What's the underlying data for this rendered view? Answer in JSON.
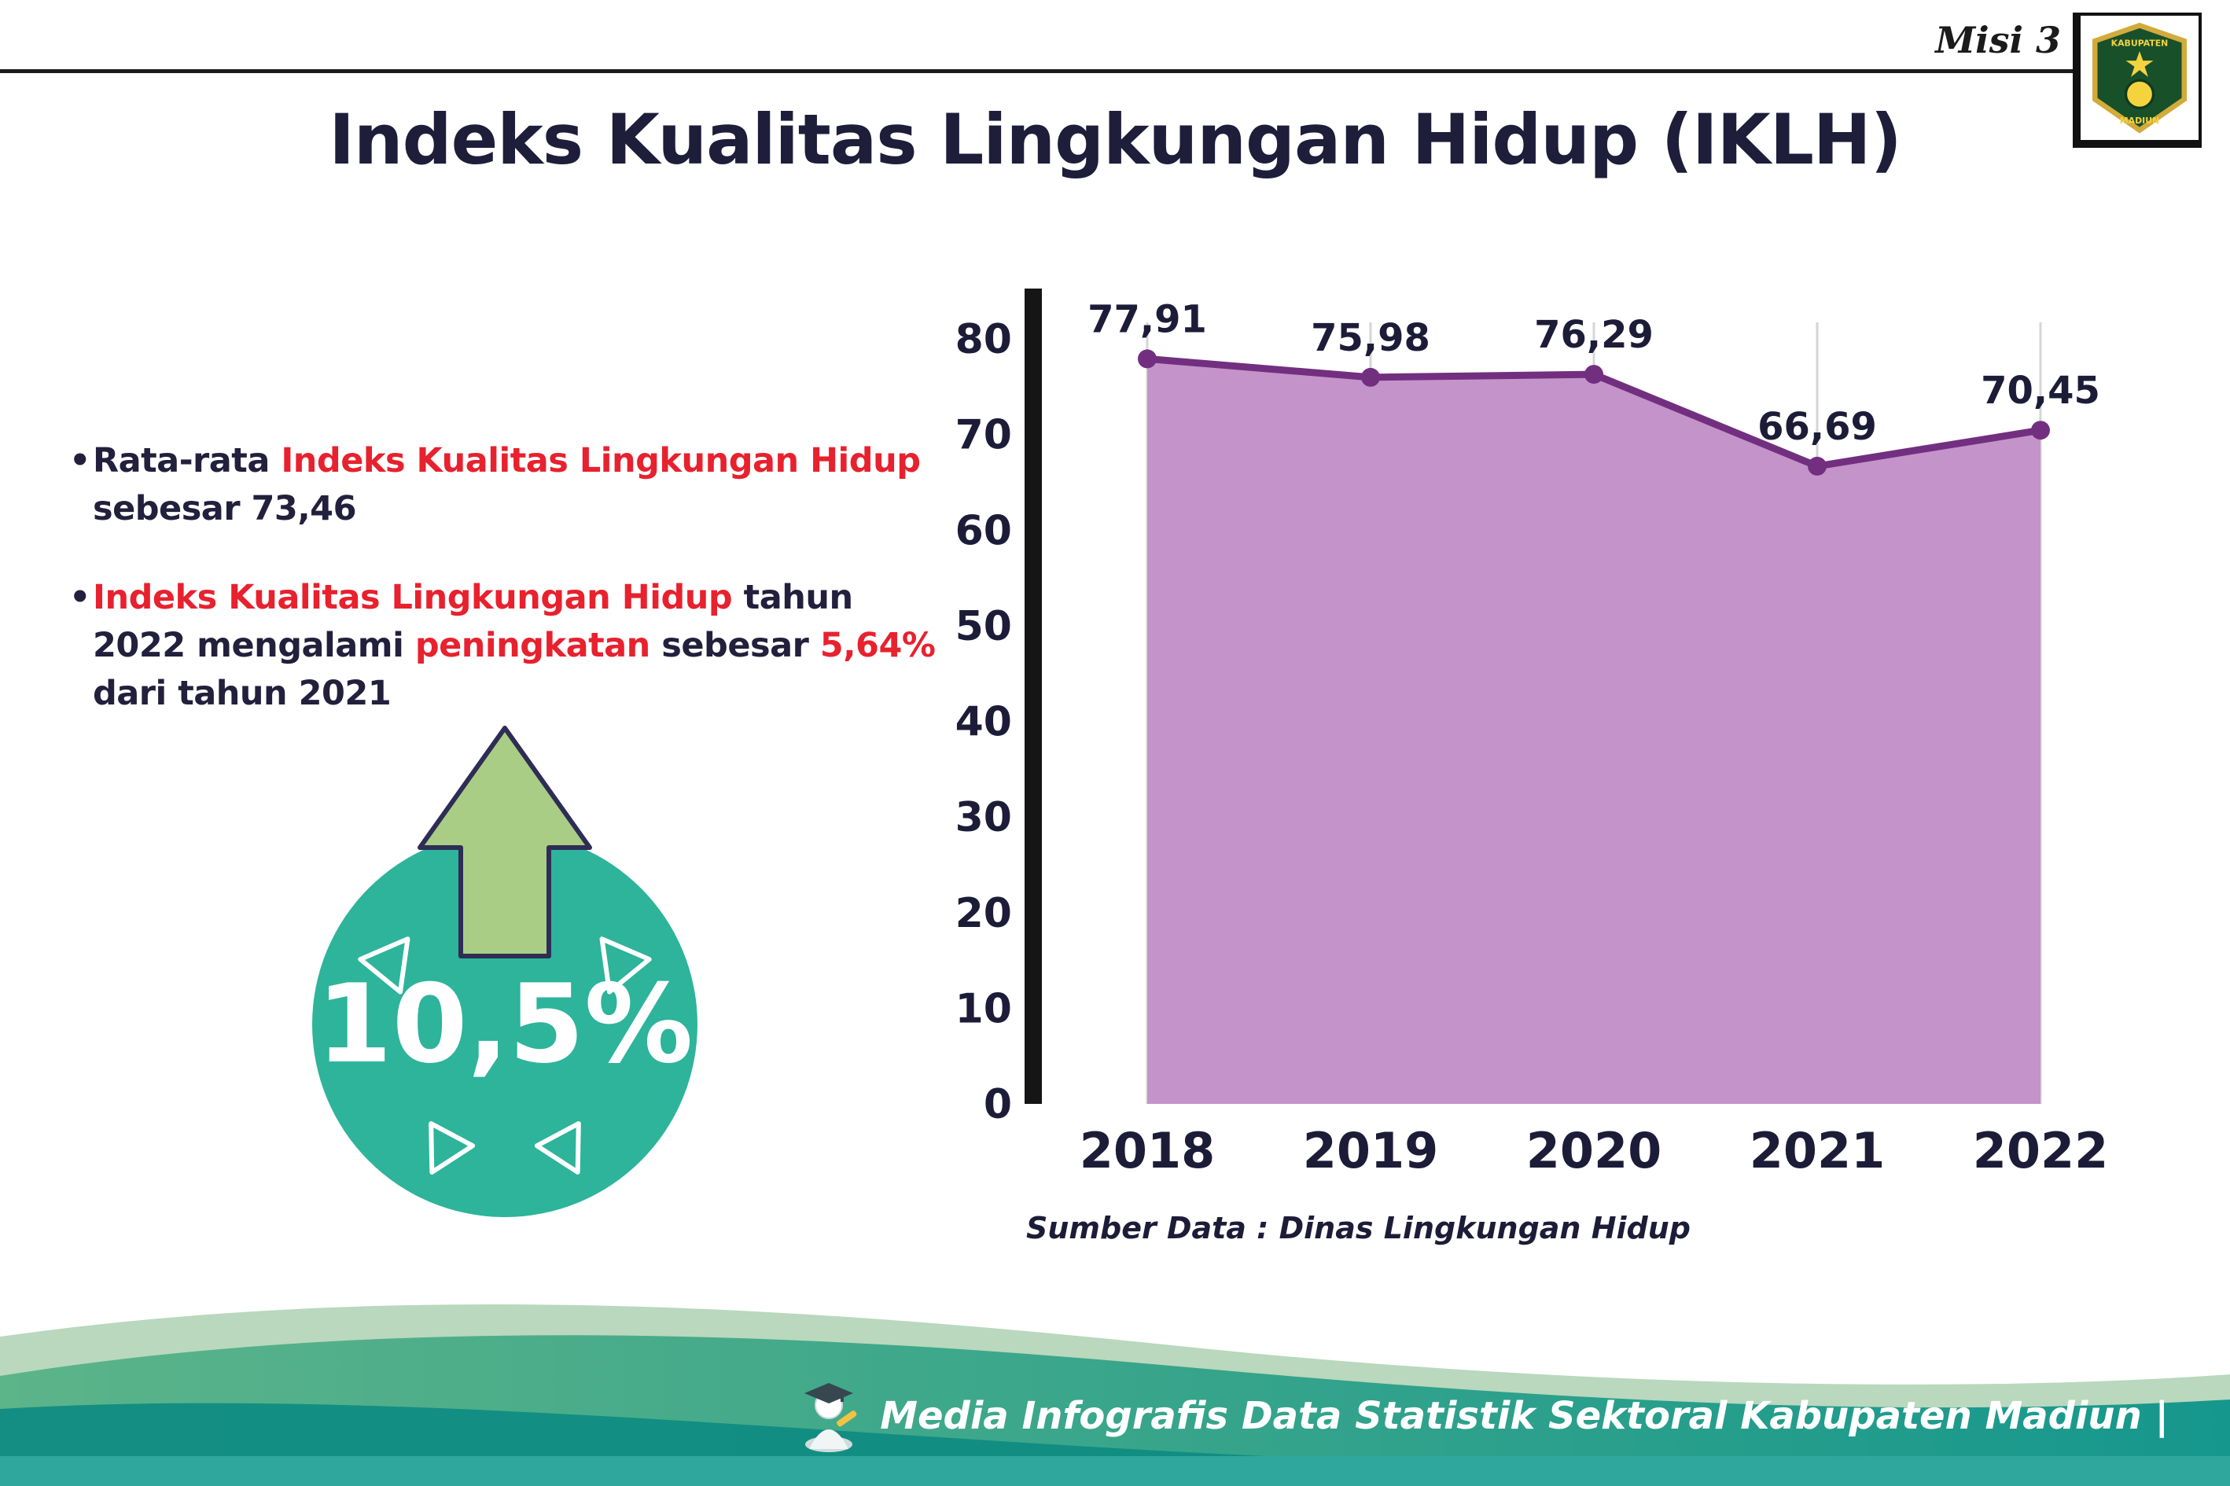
{
  "header": {
    "misi_label": "Misi 3",
    "title": "Indeks Kualitas Lingkungan Hidup (IKLH)",
    "logo": {
      "top_text": "KABUPATEN",
      "bottom_text": "MADIUN"
    }
  },
  "bullets": {
    "marker": "•",
    "b1": {
      "s1": "Rata-rata ",
      "s2": "Indeks Kualitas Lingkungan Hidup",
      "s3": " sebesar 73,46"
    },
    "b2": {
      "s1": "Indeks Kualitas Lingkungan Hidup",
      "s2": " tahun 2022 mengalami ",
      "s3": "peningkatan",
      "s4": " sebesar ",
      "s5": "5,64%",
      "s6": " dari tahun 2021"
    }
  },
  "badge": {
    "value": "10,5%"
  },
  "chart_data": {
    "type": "area",
    "categories": [
      "2018",
      "2019",
      "2020",
      "2021",
      "2022"
    ],
    "values": [
      77.91,
      75.98,
      76.29,
      66.69,
      70.45
    ],
    "point_labels": [
      "77,91",
      "75,98",
      "76,29",
      "66,69",
      "70,45"
    ],
    "ylim": [
      0,
      80
    ],
    "yticks": [
      0,
      10,
      20,
      30,
      40,
      50,
      60,
      70,
      80
    ],
    "grid": "vertical-light",
    "legend": "none",
    "fill_color": "#c493ca",
    "line_color": "#722f80",
    "source_note": "Sumber Data : Dinas Lingkungan Hidup"
  },
  "footer": {
    "credit": "Media Infografis Data Statistik Sektoral Kabupaten Madiun |"
  },
  "colors": {
    "text_dark": "#22203c",
    "accent_red": "#e8212e",
    "badge_teal": "#2db49b",
    "arrow_green": "#a9cd85"
  }
}
